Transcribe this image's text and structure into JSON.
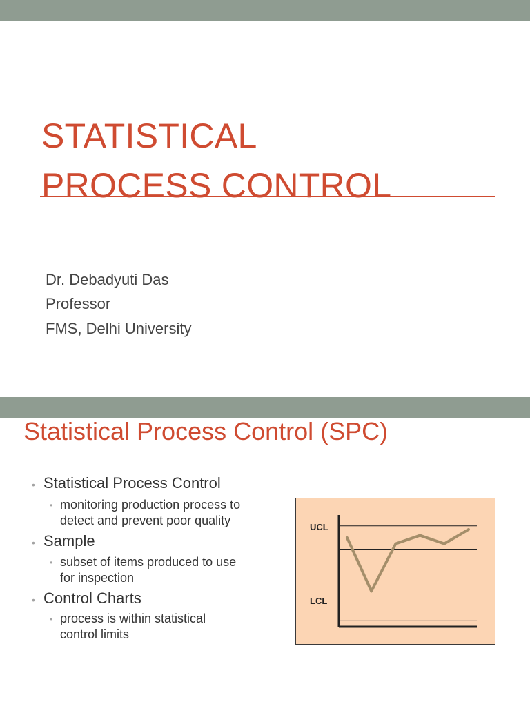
{
  "slide1": {
    "title_line1": "STATISTICAL",
    "title_line2": "PROCESS CONTROL",
    "author": "Dr. Debadyuti Das",
    "role": "Professor",
    "affiliation": "FMS, Delhi University"
  },
  "slide2": {
    "title": "Statistical Process Control (SPC)",
    "bullets": [
      {
        "text": "Statistical Process Control",
        "sub": [
          "monitoring production process to",
          "detect and prevent poor quality"
        ]
      },
      {
        "text": "Sample",
        "sub": [
          "subset of items produced to use",
          "for inspection"
        ]
      },
      {
        "text": "Control Charts",
        "sub": [
          "process is within statistical",
          "control limits"
        ]
      }
    ],
    "bullet_glyph": "•"
  },
  "chart_data": {
    "type": "line",
    "labels": {
      "upper": "UCL",
      "lower": "LCL"
    },
    "x": [
      1,
      2,
      3,
      4,
      5,
      6
    ],
    "series": [
      {
        "values": [
          0.75,
          0.3,
          0.7,
          0.77,
          0.7,
          0.82
        ]
      }
    ],
    "reference_lines": {
      "ucl": 0.85,
      "center": 0.65,
      "lcl": 0.05
    },
    "ylim": [
      0,
      1
    ],
    "colors": {
      "background": "#fcd5b4",
      "series": "#a48e6a",
      "lines": "#222222"
    }
  }
}
